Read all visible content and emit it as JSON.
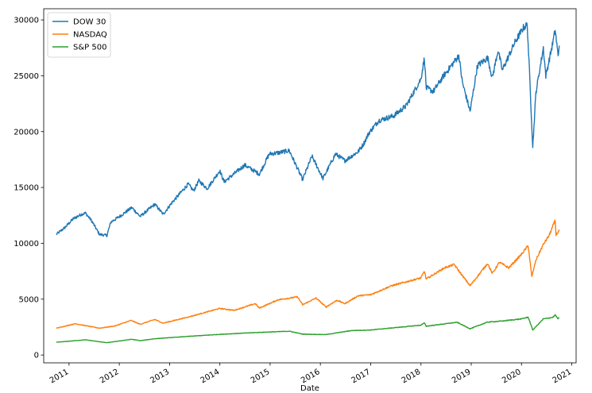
{
  "chart_data": {
    "type": "line",
    "title": "",
    "xlabel": "Date",
    "ylabel": "",
    "xlim": [
      "2010-07-01",
      "2021-02-01"
    ],
    "ylim": [
      -700,
      31000
    ],
    "grid": false,
    "legend_position": "top-left",
    "x_tick_labels": [
      "2011",
      "2012",
      "2013",
      "2014",
      "2015",
      "2016",
      "2017",
      "2018",
      "2019",
      "2020",
      "2021"
    ],
    "y_ticks": [
      0,
      5000,
      10000,
      15000,
      20000,
      25000,
      30000
    ],
    "series": [
      {
        "name": "DOW 30",
        "color": "#1f77b4",
        "points": [
          [
            "2010-10-01",
            10800
          ],
          [
            "2010-12-01",
            11400
          ],
          [
            "2011-02-01",
            12200
          ],
          [
            "2011-04-01",
            12600
          ],
          [
            "2011-05-01",
            12700
          ],
          [
            "2011-06-15",
            12000
          ],
          [
            "2011-08-10",
            10800
          ],
          [
            "2011-10-03",
            10700
          ],
          [
            "2011-11-01",
            11900
          ],
          [
            "2012-01-15",
            12500
          ],
          [
            "2012-04-01",
            13200
          ],
          [
            "2012-06-01",
            12400
          ],
          [
            "2012-09-15",
            13500
          ],
          [
            "2012-11-15",
            12600
          ],
          [
            "2013-01-15",
            13600
          ],
          [
            "2013-05-15",
            15300
          ],
          [
            "2013-06-24",
            14700
          ],
          [
            "2013-08-01",
            15600
          ],
          [
            "2013-10-01",
            14900
          ],
          [
            "2013-12-31",
            16500
          ],
          [
            "2014-02-01",
            15500
          ],
          [
            "2014-07-01",
            17000
          ],
          [
            "2014-10-15",
            16200
          ],
          [
            "2014-12-26",
            18000
          ],
          [
            "2015-03-01",
            18100
          ],
          [
            "2015-05-20",
            18300
          ],
          [
            "2015-08-25",
            15700
          ],
          [
            "2015-11-01",
            17800
          ],
          [
            "2016-01-20",
            15800
          ],
          [
            "2016-04-20",
            18000
          ],
          [
            "2016-06-27",
            17400
          ],
          [
            "2016-10-01",
            18200
          ],
          [
            "2016-11-10",
            18900
          ],
          [
            "2016-12-20",
            19900
          ],
          [
            "2017-03-01",
            21000
          ],
          [
            "2017-06-15",
            21400
          ],
          [
            "2017-09-15",
            22300
          ],
          [
            "2017-12-31",
            24700
          ],
          [
            "2018-01-26",
            26600
          ],
          [
            "2018-02-08",
            23900
          ],
          [
            "2018-04-01",
            23600
          ],
          [
            "2018-06-15",
            25000
          ],
          [
            "2018-10-03",
            26800
          ],
          [
            "2018-10-29",
            24400
          ],
          [
            "2018-12-24",
            21800
          ],
          [
            "2019-02-15",
            25900
          ],
          [
            "2019-05-01",
            26600
          ],
          [
            "2019-06-03",
            24800
          ],
          [
            "2019-07-15",
            27300
          ],
          [
            "2019-08-15",
            25500
          ],
          [
            "2019-11-15",
            28000
          ],
          [
            "2020-01-15",
            29300
          ],
          [
            "2020-02-12",
            29550
          ],
          [
            "2020-02-28",
            25400
          ],
          [
            "2020-03-23",
            18600
          ],
          [
            "2020-04-15",
            23500
          ],
          [
            "2020-06-08",
            27500
          ],
          [
            "2020-06-26",
            25000
          ],
          [
            "2020-08-15",
            27900
          ],
          [
            "2020-09-02",
            29100
          ],
          [
            "2020-09-23",
            26800
          ],
          [
            "2020-10-02",
            27700
          ]
        ]
      },
      {
        "name": "NASDAQ",
        "color": "#ff7f0e",
        "points": [
          [
            "2010-10-01",
            2400
          ],
          [
            "2011-02-15",
            2800
          ],
          [
            "2011-08-10",
            2400
          ],
          [
            "2011-12-01",
            2600
          ],
          [
            "2012-03-27",
            3100
          ],
          [
            "2012-06-01",
            2750
          ],
          [
            "2012-09-15",
            3180
          ],
          [
            "2012-11-15",
            2850
          ],
          [
            "2013-06-01",
            3450
          ],
          [
            "2013-12-31",
            4170
          ],
          [
            "2014-04-15",
            4000
          ],
          [
            "2014-09-15",
            4600
          ],
          [
            "2014-10-15",
            4200
          ],
          [
            "2015-03-01",
            4950
          ],
          [
            "2015-07-20",
            5200
          ],
          [
            "2015-08-25",
            4500
          ],
          [
            "2015-12-01",
            5100
          ],
          [
            "2016-02-11",
            4300
          ],
          [
            "2016-05-01",
            4900
          ],
          [
            "2016-06-27",
            4600
          ],
          [
            "2016-10-01",
            5300
          ],
          [
            "2016-12-31",
            5400
          ],
          [
            "2017-06-01",
            6200
          ],
          [
            "2017-12-31",
            6900
          ],
          [
            "2018-01-26",
            7500
          ],
          [
            "2018-02-08",
            6800
          ],
          [
            "2018-06-20",
            7800
          ],
          [
            "2018-08-30",
            8100
          ],
          [
            "2018-10-29",
            7100
          ],
          [
            "2018-12-24",
            6200
          ],
          [
            "2019-04-30",
            8200
          ],
          [
            "2019-06-03",
            7300
          ],
          [
            "2019-07-25",
            8300
          ],
          [
            "2019-10-01",
            7800
          ],
          [
            "2019-12-31",
            9000
          ],
          [
            "2020-02-19",
            9800
          ],
          [
            "2020-03-16",
            7000
          ],
          [
            "2020-04-15",
            8500
          ],
          [
            "2020-06-08",
            9900
          ],
          [
            "2020-07-20",
            10700
          ],
          [
            "2020-09-02",
            12050
          ],
          [
            "2020-09-08",
            10800
          ],
          [
            "2020-10-02",
            11100
          ]
        ]
      },
      {
        "name": "S&P 500",
        "color": "#2ca02c",
        "points": [
          [
            "2010-10-01",
            1140
          ],
          [
            "2011-04-29",
            1360
          ],
          [
            "2011-10-03",
            1100
          ],
          [
            "2012-04-01",
            1410
          ],
          [
            "2012-06-01",
            1280
          ],
          [
            "2012-09-15",
            1460
          ],
          [
            "2013-05-21",
            1670
          ],
          [
            "2013-12-31",
            1850
          ],
          [
            "2014-09-18",
            2010
          ],
          [
            "2015-05-21",
            2130
          ],
          [
            "2015-08-25",
            1870
          ],
          [
            "2016-02-11",
            1830
          ],
          [
            "2016-08-15",
            2190
          ],
          [
            "2016-12-31",
            2240
          ],
          [
            "2017-12-31",
            2670
          ],
          [
            "2018-01-26",
            2870
          ],
          [
            "2018-02-08",
            2580
          ],
          [
            "2018-09-20",
            2930
          ],
          [
            "2018-12-24",
            2350
          ],
          [
            "2019-04-30",
            2950
          ],
          [
            "2019-07-26",
            3020
          ],
          [
            "2019-12-31",
            3230
          ],
          [
            "2020-02-19",
            3390
          ],
          [
            "2020-03-23",
            2240
          ],
          [
            "2020-06-08",
            3230
          ],
          [
            "2020-08-15",
            3370
          ],
          [
            "2020-09-02",
            3580
          ],
          [
            "2020-09-23",
            3240
          ],
          [
            "2020-10-02",
            3350
          ]
        ]
      }
    ]
  }
}
